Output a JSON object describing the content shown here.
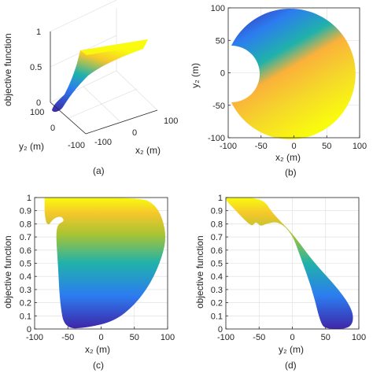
{
  "chart_data": [
    {
      "panel": "(a)",
      "type": "surface3d",
      "xlabel": "x₂ (m)",
      "ylabel": "y₂ (m)",
      "zlabel": "objective function",
      "xticks": [
        "-100",
        "0",
        "100"
      ],
      "yticks": [
        "-100",
        "0",
        "100"
      ],
      "zticks": [
        "0",
        "0.5",
        "1"
      ],
      "xlim": [
        -100,
        100
      ],
      "ylim": [
        -100,
        100
      ],
      "zlim": [
        0,
        1
      ],
      "caption": "(a)"
    },
    {
      "panel": "(b)",
      "type": "heatmap",
      "description_shape": "disk of radius 100 centered at origin with a notch cut out on the left side",
      "xlabel": "x₂ (m)",
      "ylabel": "y₂ (m)",
      "xticks": [
        "-100",
        "-50",
        "0",
        "50",
        "100"
      ],
      "yticks": [
        "-100",
        "-50",
        "0",
        "50",
        "100"
      ],
      "xlim": [
        -100,
        100
      ],
      "ylim": [
        -100,
        100
      ],
      "notch_center": [
        -90,
        0
      ],
      "notch_radius": 28,
      "caption": "(b)"
    },
    {
      "panel": "(c)",
      "type": "area",
      "xlabel": "x₂ (m)",
      "ylabel": "objective function",
      "xticks": [
        "-100",
        "-50",
        "0",
        "50",
        "100"
      ],
      "yticks": [
        "0",
        "0.1",
        "0.2",
        "0.3",
        "0.4",
        "0.5",
        "0.6",
        "0.7",
        "0.8",
        "0.9",
        "1"
      ],
      "xlim": [
        -100,
        100
      ],
      "ylim": [
        0,
        1
      ],
      "outline": [
        [
          -85,
          1
        ],
        [
          60,
          1
        ],
        [
          80,
          0.95
        ],
        [
          92,
          0.85
        ],
        [
          98,
          0.7
        ],
        [
          92,
          0.55
        ],
        [
          75,
          0.35
        ],
        [
          50,
          0.18
        ],
        [
          20,
          0.06
        ],
        [
          -20,
          0.01
        ],
        [
          -55,
          0
        ],
        [
          -62,
          0.2
        ],
        [
          -65,
          0.5
        ],
        [
          -68,
          0.72
        ],
        [
          -65,
          0.8
        ],
        [
          -55,
          0.82
        ],
        [
          -60,
          0.86
        ],
        [
          -72,
          0.84
        ],
        [
          -80,
          0.78
        ],
        [
          -85,
          0.85
        ],
        [
          -85,
          1
        ]
      ],
      "caption": "(c)"
    },
    {
      "panel": "(d)",
      "type": "area",
      "xlabel": "y₂ (m)",
      "ylabel": "objective function",
      "xticks": [
        "-100",
        "-50",
        "0",
        "50",
        "100"
      ],
      "yticks": [
        "0",
        "0.1",
        "0.2",
        "0.3",
        "0.4",
        "0.5",
        "0.6",
        "0.7",
        "0.8",
        "0.9",
        "1"
      ],
      "xlim": [
        -100,
        100
      ],
      "ylim": [
        0,
        1
      ],
      "outline": [
        [
          -100,
          1
        ],
        [
          -45,
          1
        ],
        [
          -30,
          0.88
        ],
        [
          0,
          0.73
        ],
        [
          30,
          0.52
        ],
        [
          70,
          0.3
        ],
        [
          90,
          0.15
        ],
        [
          92,
          0.05
        ],
        [
          82,
          0
        ],
        [
          50,
          0
        ],
        [
          42,
          0.05
        ],
        [
          30,
          0.3
        ],
        [
          12,
          0.55
        ],
        [
          0,
          0.72
        ],
        [
          -20,
          0.82
        ],
        [
          -40,
          0.8
        ],
        [
          -48,
          0.78
        ],
        [
          -55,
          0.82
        ],
        [
          -60,
          0.78
        ],
        [
          -70,
          0.82
        ],
        [
          -85,
          0.9
        ],
        [
          -100,
          0.98
        ],
        [
          -100,
          1
        ]
      ],
      "caption": "(d)"
    }
  ],
  "colors": {
    "low": "#3e26a8",
    "mid": "#20b2aa",
    "high": "#f9fb0e"
  }
}
